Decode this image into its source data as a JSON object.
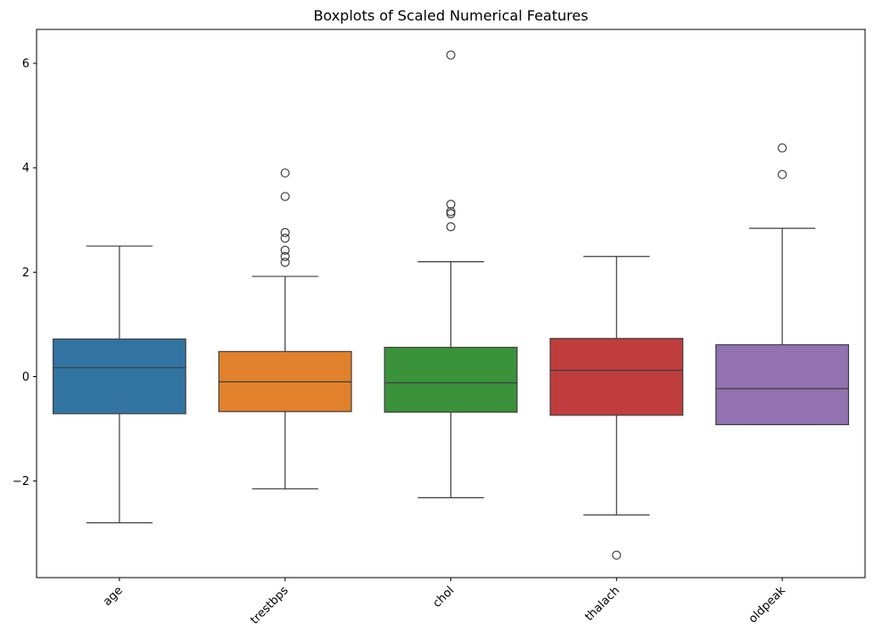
{
  "chart_data": {
    "type": "boxplot",
    "title": "Boxplots of Scaled Numerical Features",
    "xlabel": "",
    "ylabel": "",
    "ylim": [
      -3.85,
      6.65
    ],
    "yticks": [
      -2,
      0,
      2,
      4,
      6
    ],
    "ytick_labels": [
      "−2",
      "0",
      "2",
      "4",
      "6"
    ],
    "x_tick_rotation": 45,
    "grid": false,
    "legend": "none",
    "categories": [
      "age",
      "trestbps",
      "chol",
      "thalach",
      "oldpeak"
    ],
    "boxes": [
      {
        "label": "age",
        "color": "#3274a1",
        "whisker_low": -2.8,
        "q1": -0.71,
        "median": 0.17,
        "q3": 0.72,
        "whisker_high": 2.5,
        "outliers": []
      },
      {
        "label": "trestbps",
        "color": "#e1812c",
        "whisker_low": -2.15,
        "q1": -0.67,
        "median": -0.1,
        "q3": 0.48,
        "whisker_high": 1.92,
        "outliers": [
          2.19,
          2.3,
          2.42,
          2.65,
          2.76,
          3.45,
          3.9
        ]
      },
      {
        "label": "chol",
        "color": "#3a923a",
        "whisker_low": -2.32,
        "q1": -0.68,
        "median": -0.12,
        "q3": 0.56,
        "whisker_high": 2.2,
        "outliers": [
          2.87,
          3.12,
          3.16,
          3.3,
          6.16
        ]
      },
      {
        "label": "thalach",
        "color": "#c03d3e",
        "whisker_low": -2.65,
        "q1": -0.74,
        "median": 0.12,
        "q3": 0.73,
        "whisker_high": 2.3,
        "outliers": [
          -3.42
        ]
      },
      {
        "label": "oldpeak",
        "color": "#9372b2",
        "whisker_low": -0.92,
        "q1": -0.92,
        "median": -0.23,
        "q3": 0.61,
        "whisker_high": 2.84,
        "outliers": [
          3.87,
          4.38
        ]
      }
    ]
  }
}
